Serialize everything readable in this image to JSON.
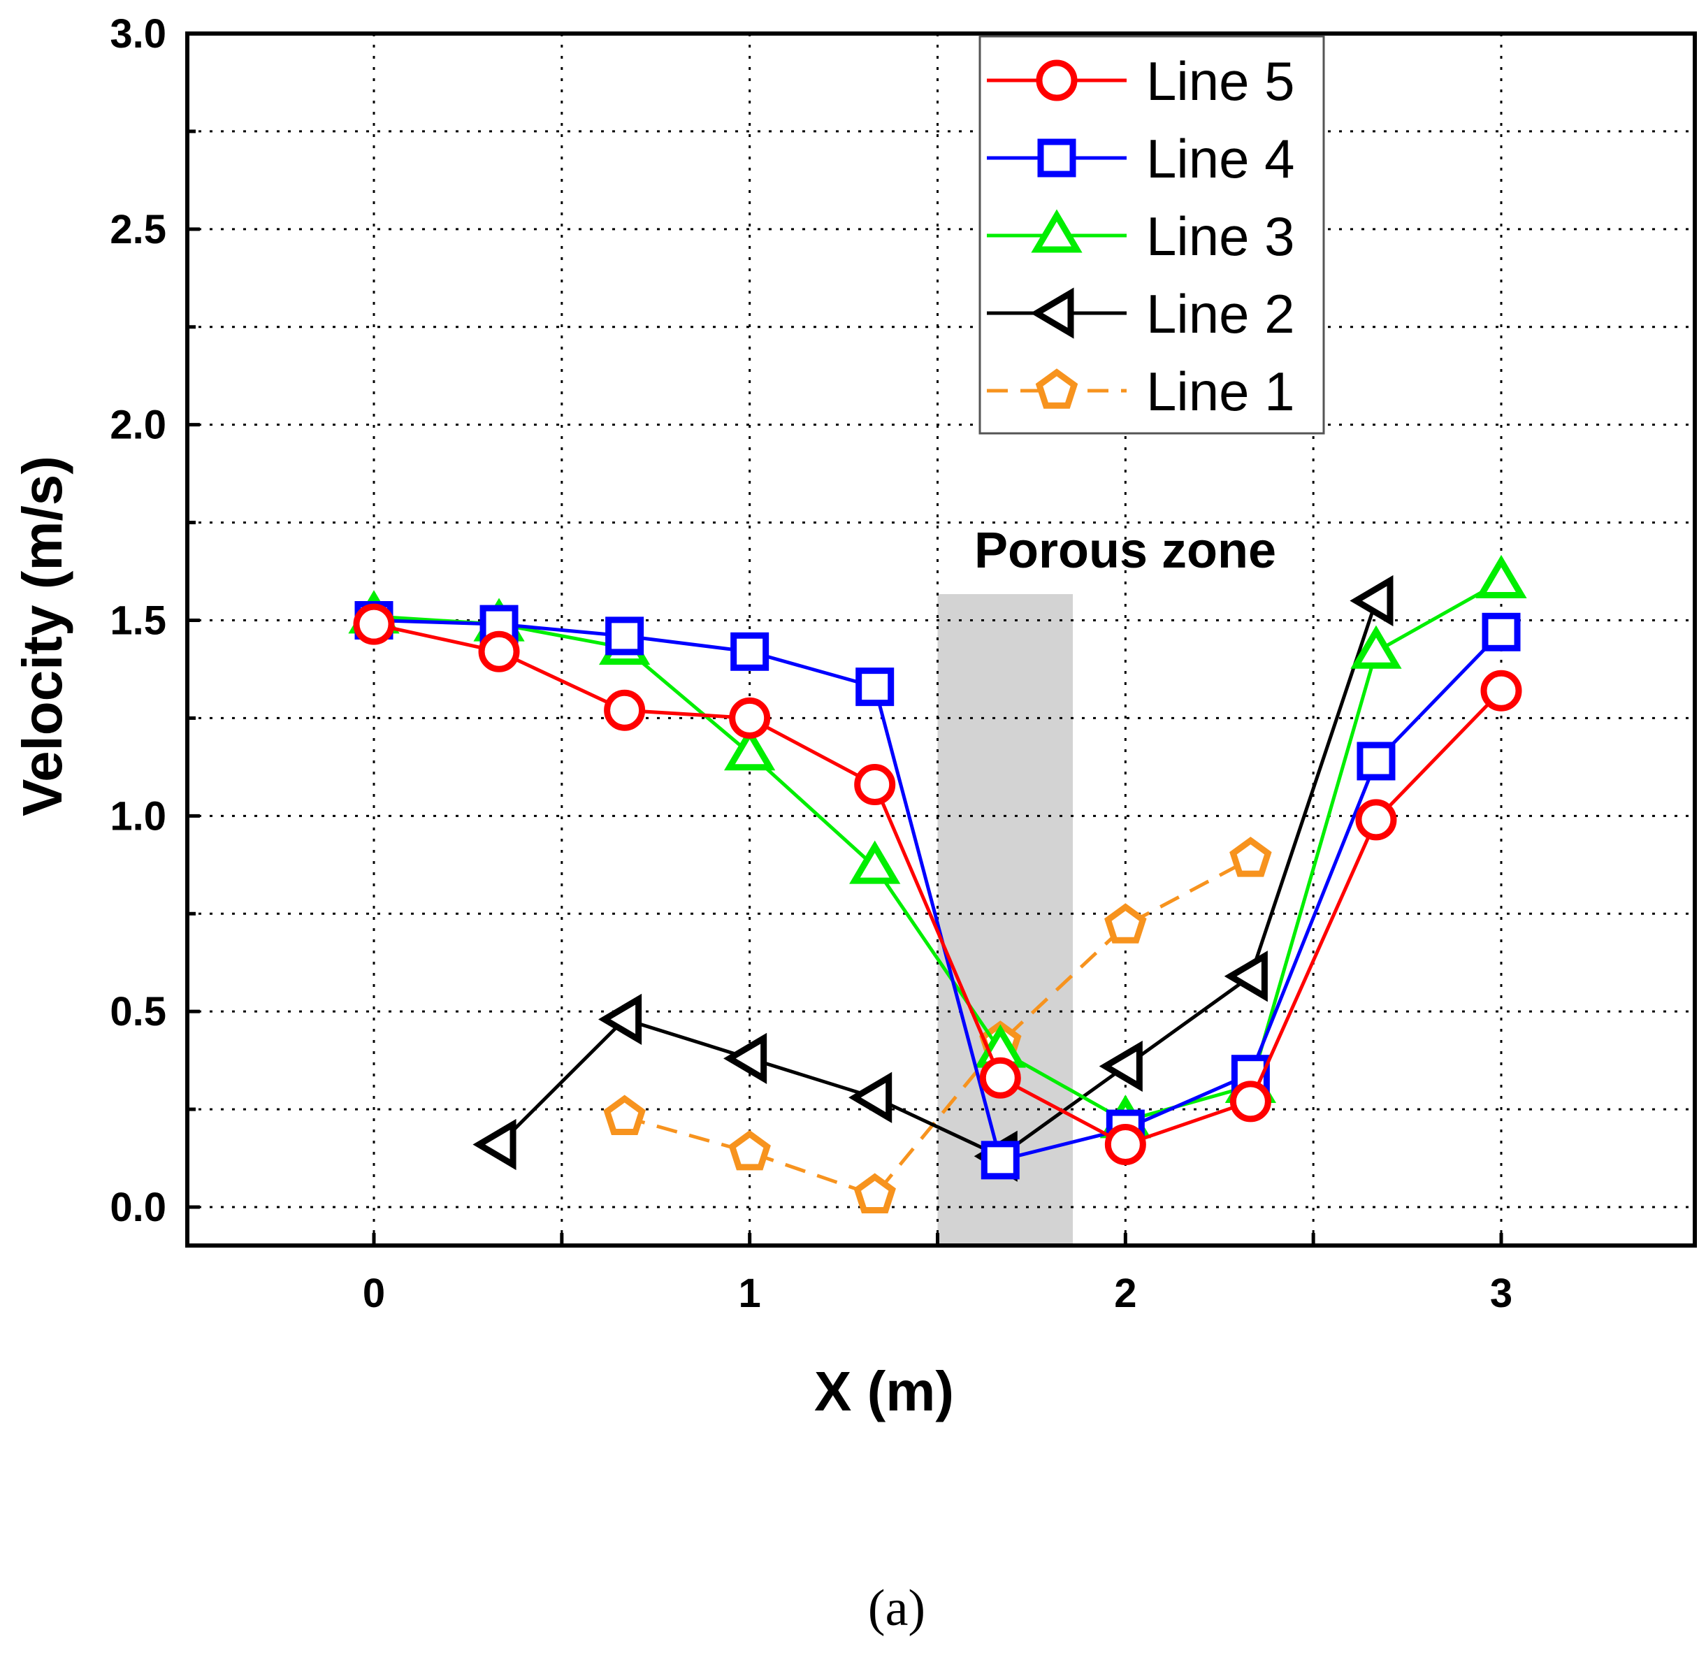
{
  "chart_data": {
    "type": "line",
    "title": "",
    "xlabel": "X (m)",
    "ylabel": "Velocity (m/s)",
    "xlim": [
      -0.5,
      3.5
    ],
    "ylim": [
      -0.1,
      3.0
    ],
    "xticks": [
      "0",
      "1",
      "2",
      "3"
    ],
    "yticks": [
      "0.0",
      "0.5",
      "1.0",
      "1.5",
      "2.0",
      "2.5",
      "3.0"
    ],
    "grid": true,
    "legend_position": "top-right",
    "annotation": "Porous zone",
    "porous_zone": [
      1.5,
      1.86
    ],
    "series": [
      {
        "name": "Line 5",
        "color": "#ff0000",
        "marker": "circle",
        "dashed": false,
        "x": [
          0,
          0.333,
          0.667,
          1.0,
          1.333,
          1.667,
          2.0,
          2.333,
          2.667,
          3.0
        ],
        "y": [
          1.49,
          1.42,
          1.27,
          1.25,
          1.08,
          0.33,
          0.16,
          0.27,
          0.99,
          1.32
        ]
      },
      {
        "name": "Line 4",
        "color": "#0000ff",
        "marker": "square",
        "dashed": false,
        "x": [
          0,
          0.333,
          0.667,
          1.0,
          1.333,
          1.667,
          2.0,
          2.333,
          2.667,
          3.0
        ],
        "y": [
          1.5,
          1.49,
          1.46,
          1.42,
          1.33,
          0.12,
          0.2,
          0.34,
          1.14,
          1.47
        ]
      },
      {
        "name": "Line 3",
        "color": "#00ee00",
        "marker": "triangle-up",
        "dashed": false,
        "x": [
          0,
          0.333,
          0.667,
          1.0,
          1.333,
          1.667,
          2.0,
          2.333,
          2.667,
          3.0
        ],
        "y": [
          1.51,
          1.49,
          1.43,
          1.16,
          0.87,
          0.4,
          0.22,
          0.31,
          1.42,
          1.6
        ]
      },
      {
        "name": "Line 2",
        "color": "#000000",
        "marker": "triangle-left",
        "dashed": false,
        "x": [
          0.333,
          0.667,
          1.0,
          1.333,
          1.667,
          2.0,
          2.333,
          2.667
        ],
        "y": [
          0.16,
          0.48,
          0.38,
          0.28,
          0.13,
          0.36,
          0.59,
          1.55
        ]
      },
      {
        "name": "Line 1",
        "color": "#f7931e",
        "marker": "pentagon",
        "dashed": true,
        "x": [
          0.667,
          1.0,
          1.333,
          1.667,
          2.0,
          2.333
        ],
        "y": [
          0.23,
          0.14,
          0.03,
          0.42,
          0.72,
          0.89
        ]
      }
    ]
  },
  "caption": "(a)"
}
